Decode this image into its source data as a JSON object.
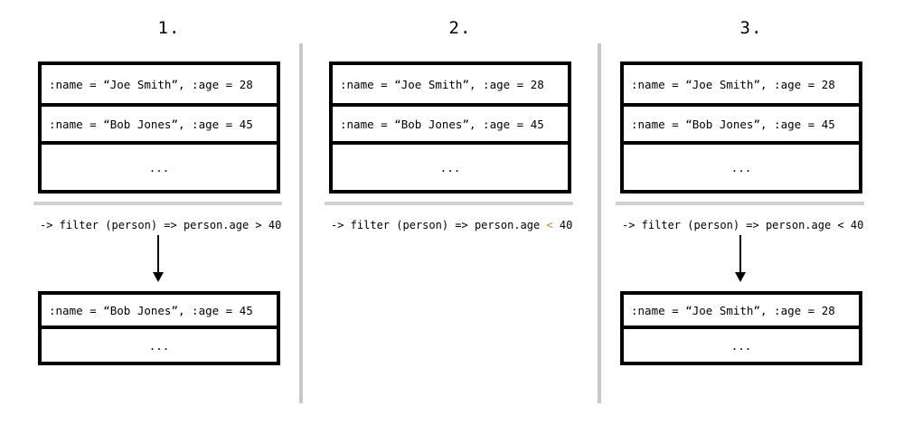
{
  "panels": [
    {
      "title": "1.",
      "input_rows": [
        ":name = “Joe Smith”, :age = 28",
        ":name = “Bob Jones”, :age = 45",
        "..."
      ],
      "filter_prefix": "-> filter (person) => person.age ",
      "filter_op": ">",
      "filter_suffix": " 40",
      "output_rows": [
        ":name = “Bob Jones”, :age = 45",
        "..."
      ]
    },
    {
      "title": "2.",
      "input_rows": [
        ":name = “Joe Smith”, :age = 28",
        ":name = “Bob Jones”, :age = 45",
        "..."
      ],
      "filter_prefix": "-> filter (person) => person.age ",
      "filter_op": "<",
      "filter_suffix": " 40",
      "output_rows": []
    },
    {
      "title": "3.",
      "input_rows": [
        ":name = “Joe Smith”, :age = 28",
        ":name = “Bob Jones”, :age = 45",
        "..."
      ],
      "filter_prefix": "-> filter (person) => person.age ",
      "filter_op": "<",
      "filter_suffix": " 40",
      "output_rows": [
        ":name = “Joe Smith”, :age = 28",
        "..."
      ]
    }
  ],
  "colors": {
    "accent_operator": "#e07b1a",
    "divider": "#c8c8c8",
    "separator": "#d0d0d0"
  }
}
